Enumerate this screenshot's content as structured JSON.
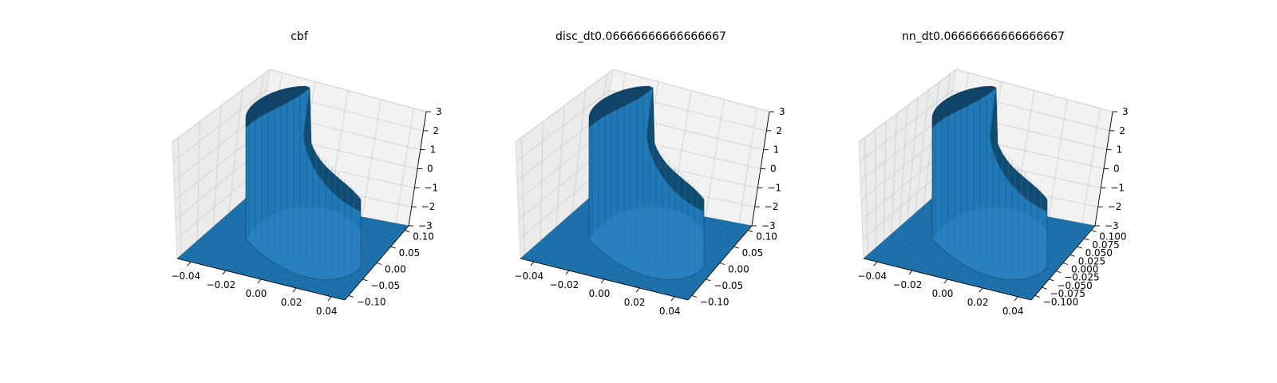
{
  "colors": {
    "surface": "#1f77b4",
    "surface_dark": "#0e3d5e",
    "surface_light": "#3a8fd0"
  },
  "chart_data": [
    {
      "type": "surface3d",
      "title": "cbf",
      "x_ticks": [
        "−0.04",
        "−0.02",
        "0.00",
        "0.02",
        "0.04"
      ],
      "y_ticks": [
        "−0.10",
        "−0.05",
        "0.00",
        "0.05",
        "0.10"
      ],
      "z_ticks": [
        "−3",
        "−2",
        "−1",
        "0",
        "1",
        "2",
        "3"
      ],
      "xlim": [
        -0.05,
        0.05
      ],
      "ylim": [
        -0.1,
        0.1
      ],
      "zlim": [
        -3,
        3
      ],
      "grid": true
    },
    {
      "type": "surface3d",
      "title": "disc_dt0.06666666666666667",
      "x_ticks": [
        "−0.04",
        "−0.02",
        "0.00",
        "0.02",
        "0.04"
      ],
      "y_ticks": [
        "−0.10",
        "−0.05",
        "0.00",
        "0.05",
        "0.10"
      ],
      "z_ticks": [
        "−3",
        "−2",
        "−1",
        "0",
        "1",
        "2",
        "3"
      ],
      "xlim": [
        -0.05,
        0.05
      ],
      "ylim": [
        -0.1,
        0.1
      ],
      "zlim": [
        -3,
        3
      ],
      "grid": true
    },
    {
      "type": "surface3d",
      "title": "nn_dt0.06666666666666667",
      "x_ticks": [
        "−0.04",
        "−0.02",
        "0.00",
        "0.02",
        "0.04"
      ],
      "y_ticks": [
        "−0.100",
        "−0.075",
        "−0.050",
        "−0.025",
        "0.000",
        "0.025",
        "0.050",
        "0.075",
        "0.100"
      ],
      "z_ticks": [
        "−3",
        "−2",
        "−1",
        "0",
        "1",
        "2",
        "3"
      ],
      "xlim": [
        -0.05,
        0.05
      ],
      "ylim": [
        -0.1,
        0.1
      ],
      "zlim": [
        -3,
        3
      ],
      "grid": true
    }
  ]
}
